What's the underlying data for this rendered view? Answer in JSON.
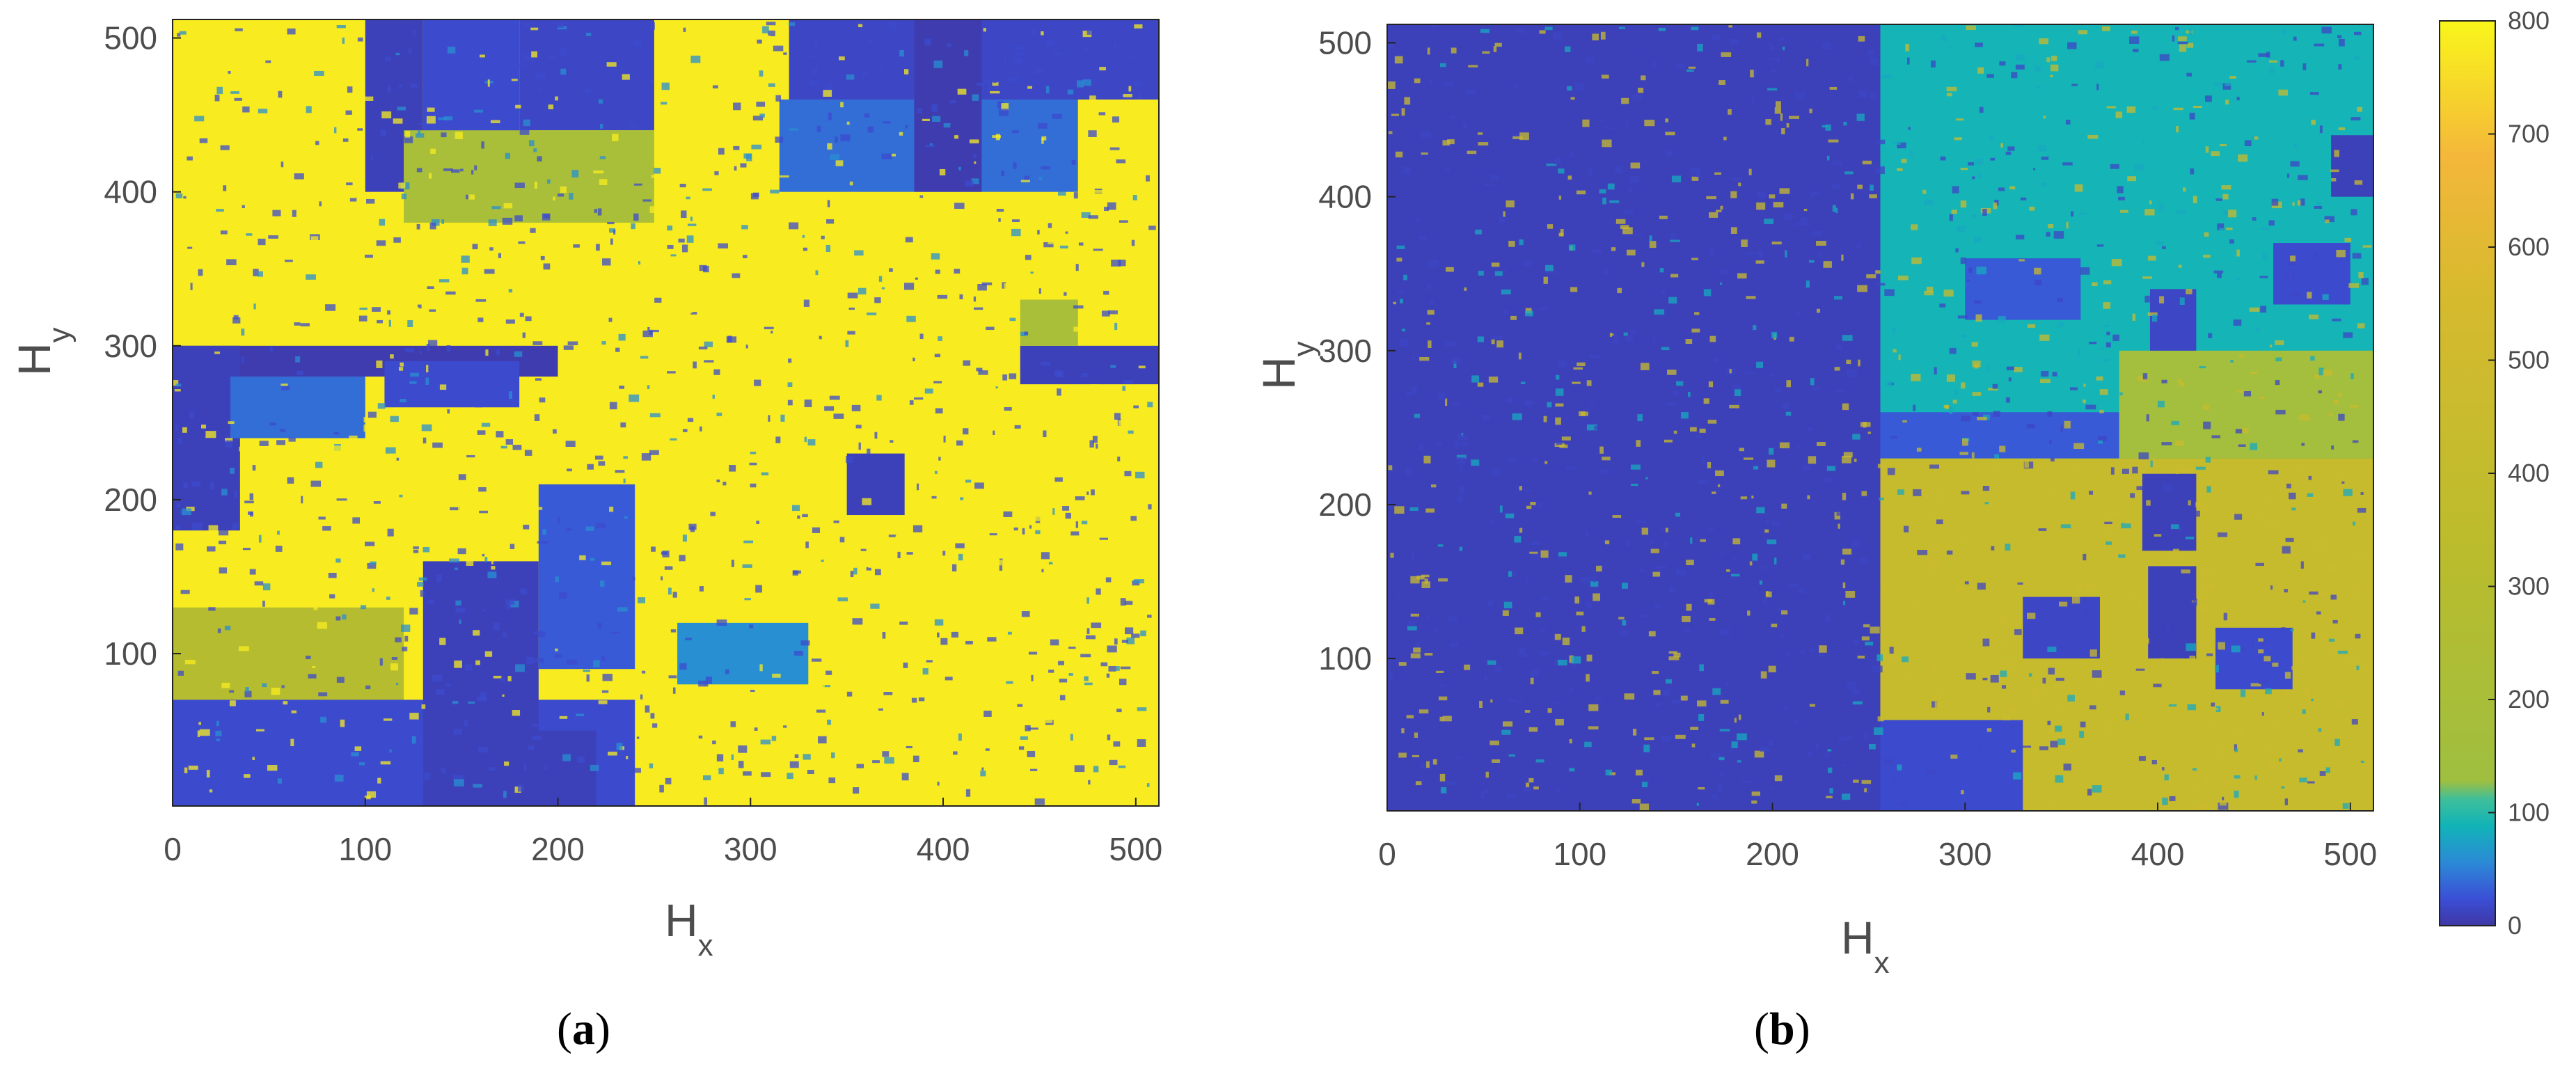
{
  "chart_data": [
    {
      "type": "heatmap",
      "panel_label": "a",
      "xlabel": "H",
      "xlabel_sub": "x",
      "ylabel": "H",
      "ylabel_sub": "y",
      "xlim": [
        0,
        512
      ],
      "ylim": [
        1,
        512
      ],
      "xticks": [
        0,
        100,
        200,
        300,
        400,
        500
      ],
      "yticks": [
        100,
        200,
        300,
        400,
        500
      ],
      "background_value": 780,
      "regions": [
        {
          "x": [
            100,
            130
          ],
          "y": [
            400,
            512
          ],
          "value": 10
        },
        {
          "x": [
            130,
            180
          ],
          "y": [
            430,
            512
          ],
          "value": 20
        },
        {
          "x": [
            180,
            250
          ],
          "y": [
            440,
            512
          ],
          "value": 15
        },
        {
          "x": [
            120,
            250
          ],
          "y": [
            380,
            440
          ],
          "value": 200
        },
        {
          "x": [
            320,
            520
          ],
          "y": [
            460,
            512
          ],
          "value": 15
        },
        {
          "x": [
            315,
            470
          ],
          "y": [
            400,
            460
          ],
          "value": 40
        },
        {
          "x": [
            385,
            420
          ],
          "y": [
            400,
            512
          ],
          "value": 5
        },
        {
          "x": [
            0,
            200
          ],
          "y": [
            280,
            300
          ],
          "value": 5
        },
        {
          "x": [
            0,
            35
          ],
          "y": [
            180,
            300
          ],
          "value": 10
        },
        {
          "x": [
            30,
            100
          ],
          "y": [
            240,
            280
          ],
          "value": 40
        },
        {
          "x": [
            110,
            180
          ],
          "y": [
            260,
            290
          ],
          "value": 20
        },
        {
          "x": [
            440,
            512
          ],
          "y": [
            275,
            300
          ],
          "value": 10
        },
        {
          "x": [
            0,
            120
          ],
          "y": [
            50,
            130
          ],
          "value": 300
        },
        {
          "x": [
            0,
            240
          ],
          "y": [
            0,
            70
          ],
          "value": 20
        },
        {
          "x": [
            130,
            190
          ],
          "y": [
            0,
            160
          ],
          "value": 10
        },
        {
          "x": [
            190,
            240
          ],
          "y": [
            90,
            210
          ],
          "value": 30
        },
        {
          "x": [
            190,
            220
          ],
          "y": [
            0,
            50
          ],
          "value": 10
        },
        {
          "x": [
            350,
            380
          ],
          "y": [
            190,
            230
          ],
          "value": 10
        },
        {
          "x": [
            262,
            330
          ],
          "y": [
            80,
            120
          ],
          "value": 60
        },
        {
          "x": [
            440,
            470
          ],
          "y": [
            300,
            330
          ],
          "value": 200
        }
      ]
    },
    {
      "type": "heatmap",
      "panel_label": "b",
      "xlabel": "H",
      "xlabel_sub": "x",
      "ylabel": "H",
      "ylabel_sub": "y",
      "xlim": [
        0,
        512
      ],
      "ylim": [
        1,
        512
      ],
      "xticks": [
        0,
        100,
        200,
        300,
        400,
        500
      ],
      "yticks": [
        100,
        200,
        300,
        400,
        500
      ],
      "colorbar": {
        "min": 0,
        "max": 800,
        "ticks": [
          0,
          100,
          200,
          300,
          400,
          500,
          600,
          700,
          800
        ]
      },
      "background_value": 10,
      "regions": [
        {
          "x": [
            256,
            512
          ],
          "y": [
            200,
            512
          ],
          "value": 90
        },
        {
          "x": [
            256,
            512
          ],
          "y": [
            0,
            230
          ],
          "value": 420
        },
        {
          "x": [
            256,
            380
          ],
          "y": [
            230,
            260
          ],
          "value": 30
        },
        {
          "x": [
            380,
            512
          ],
          "y": [
            230,
            300
          ],
          "value": 160
        },
        {
          "x": [
            256,
            330
          ],
          "y": [
            0,
            60
          ],
          "value": 20
        },
        {
          "x": [
            330,
            370
          ],
          "y": [
            100,
            140
          ],
          "value": 15
        },
        {
          "x": [
            395,
            420
          ],
          "y": [
            100,
            160
          ],
          "value": 10
        },
        {
          "x": [
            392,
            420
          ],
          "y": [
            170,
            220
          ],
          "value": 10
        },
        {
          "x": [
            430,
            470
          ],
          "y": [
            80,
            120
          ],
          "value": 20
        },
        {
          "x": [
            460,
            500
          ],
          "y": [
            330,
            370
          ],
          "value": 20
        },
        {
          "x": [
            300,
            360
          ],
          "y": [
            320,
            360
          ],
          "value": 30
        },
        {
          "x": [
            396,
            420
          ],
          "y": [
            300,
            340
          ],
          "value": 15
        },
        {
          "x": [
            490,
            512
          ],
          "y": [
            400,
            440
          ],
          "value": 10
        }
      ]
    }
  ]
}
